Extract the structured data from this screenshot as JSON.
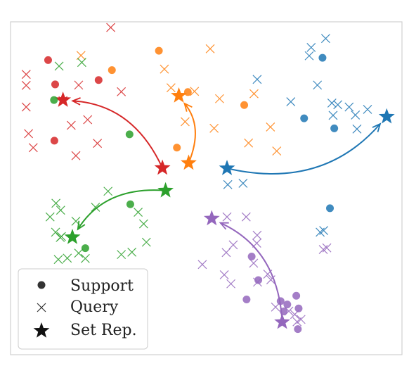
{
  "chart_data": {
    "type": "scatter",
    "xlim": [
      0,
      100
    ],
    "ylim": [
      0,
      100
    ],
    "grid": false,
    "legend_placement": "bottom-left",
    "legend": [
      {
        "label": "Support",
        "marker": "circle"
      },
      {
        "label": "Query",
        "marker": "x"
      },
      {
        "label": "Set Rep.",
        "marker": "star"
      }
    ],
    "marker_color_legend": "#333333",
    "series": [
      {
        "color": "#d62728",
        "support": [
          [
            9.6,
            88.5
          ],
          [
            11.4,
            81.2
          ],
          [
            22.5,
            82.5
          ],
          [
            11.2,
            64.3
          ]
        ],
        "query": [
          [
            25.6,
            98.3
          ],
          [
            4.0,
            84.2
          ],
          [
            4.0,
            80.9
          ],
          [
            4.0,
            74.4
          ],
          [
            13.4,
            76.3
          ],
          [
            17.4,
            81.0
          ],
          [
            15.5,
            68.9
          ],
          [
            19.7,
            70.6
          ],
          [
            22.2,
            63.5
          ],
          [
            4.6,
            66.4
          ],
          [
            5.8,
            62.2
          ],
          [
            16.7,
            59.8
          ],
          [
            28.3,
            79.0
          ]
        ],
        "rep": [
          13.4,
          76.5
        ],
        "rep_target": [
          38.8,
          56.1
        ]
      },
      {
        "color": "#ff7f0e",
        "support": [
          [
            37.9,
            91.3
          ],
          [
            25.9,
            85.5
          ],
          [
            45.3,
            78.9
          ],
          [
            59.7,
            75.0
          ],
          [
            42.5,
            62.2
          ]
        ],
        "query": [
          [
            18.0,
            89.9
          ],
          [
            39.3,
            85.8
          ],
          [
            41.0,
            80.2
          ],
          [
            47.0,
            79.1
          ],
          [
            51.0,
            91.9
          ],
          [
            44.6,
            70.0
          ],
          [
            53.4,
            76.9
          ],
          [
            62.2,
            78.4
          ],
          [
            52.0,
            68.0
          ],
          [
            60.8,
            63.6
          ],
          [
            66.4,
            68.4
          ],
          [
            68.0,
            61.2
          ]
        ],
        "rep": [
          43.0,
          77.8
        ],
        "rep_target": [
          45.5,
          57.6
        ]
      },
      {
        "color": "#1f77b4",
        "support": [
          [
            79.7,
            89.2
          ],
          [
            75.0,
            71.0
          ],
          [
            82.7,
            68.0
          ],
          [
            81.6,
            44.0
          ]
        ],
        "query": [
          [
            76.8,
            92.3
          ],
          [
            80.5,
            95.0
          ],
          [
            76.3,
            89.8
          ],
          [
            63.0,
            82.7
          ],
          [
            71.6,
            76.0
          ],
          [
            78.4,
            81.0
          ],
          [
            83.6,
            75.1
          ],
          [
            86.5,
            74.4
          ],
          [
            82.1,
            75.6
          ],
          [
            82.4,
            71.9
          ],
          [
            88.1,
            72.0
          ],
          [
            91.2,
            73.7
          ],
          [
            88.5,
            67.8
          ],
          [
            55.5,
            51.1
          ],
          [
            59.4,
            51.5
          ],
          [
            79.1,
            36.8
          ],
          [
            80.0,
            37.3
          ]
        ],
        "rep": [
          96.1,
          71.5
        ],
        "rep_target": [
          55.3,
          56.0
        ]
      },
      {
        "color": "#2ca02c",
        "support": [
          [
            11.1,
            76.5
          ],
          [
            30.4,
            66.2
          ],
          [
            30.6,
            45.2
          ],
          [
            19.1,
            32.0
          ]
        ],
        "query": [
          [
            12.4,
            86.7
          ],
          [
            18.2,
            87.8
          ],
          [
            24.9,
            49.1
          ],
          [
            11.6,
            45.5
          ],
          [
            12.8,
            43.4
          ],
          [
            10.1,
            41.4
          ],
          [
            16.7,
            40.1
          ],
          [
            21.7,
            44.3
          ],
          [
            32.6,
            42.8
          ],
          [
            34.0,
            39.3
          ],
          [
            13.0,
            35.5
          ],
          [
            12.7,
            35.2
          ],
          [
            11.5,
            36.8
          ],
          [
            17.4,
            30.5
          ],
          [
            12.2,
            28.6
          ],
          [
            14.5,
            29.0
          ],
          [
            19.1,
            28.9
          ],
          [
            28.3,
            30.1
          ],
          [
            31.0,
            30.8
          ],
          [
            34.7,
            33.8
          ]
        ],
        "rep": [
          15.8,
          35.3
        ],
        "rep_target": [
          39.6,
          49.3
        ]
      },
      {
        "color": "#9467bd",
        "support": [
          [
            61.6,
            29.5
          ],
          [
            63.3,
            22.4
          ],
          [
            60.3,
            16.6
          ],
          [
            69.0,
            16.1
          ],
          [
            70.7,
            15.1
          ],
          [
            73.0,
            17.7
          ],
          [
            73.6,
            13.9
          ],
          [
            69.8,
            13.0
          ],
          [
            73.4,
            7.7
          ]
        ],
        "query": [
          [
            55.3,
            41.4
          ],
          [
            60.2,
            41.4
          ],
          [
            63.0,
            35.9
          ],
          [
            62.9,
            33.5
          ],
          [
            56.9,
            33.0
          ],
          [
            49.0,
            27.1
          ],
          [
            55.1,
            30.7
          ],
          [
            62.1,
            27.5
          ],
          [
            65.7,
            24.2
          ],
          [
            63.1,
            21.8
          ],
          [
            56.3,
            21.3
          ],
          [
            54.6,
            24.0
          ],
          [
            66.5,
            22.5
          ],
          [
            80.8,
            32.1
          ],
          [
            79.9,
            31.6
          ],
          [
            67.7,
            14.3
          ],
          [
            72.6,
            12.1
          ],
          [
            73.2,
            9.9
          ],
          [
            74.2,
            10.6
          ],
          [
            71.1,
            13.1
          ]
        ],
        "rep": [
          51.4,
          40.9
        ],
        "rep_target": [
          69.4,
          9.8
        ]
      }
    ]
  }
}
